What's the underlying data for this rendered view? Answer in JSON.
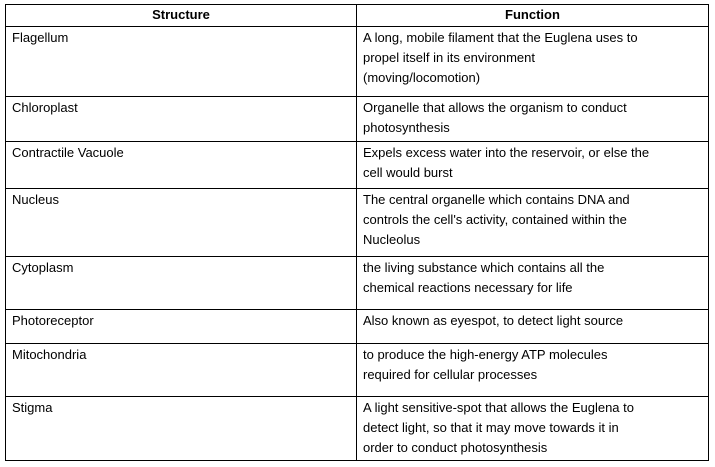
{
  "headers": {
    "structure": "Structure",
    "function": "Function"
  },
  "rows": [
    {
      "structure": "Flagellum",
      "function": [
        "A long, mobile filament that the Euglena uses to",
        "propel  itself in its environment",
        "(moving/locomotion)"
      ]
    },
    {
      "structure": "Chloroplast",
      "function": [
        "Organelle that allows the organism to conduct",
        "photosynthesis"
      ]
    },
    {
      "structure": "Contractile Vacuole",
      "function": [
        "Expels excess water into the reservoir, or else the",
        "cell would burst"
      ]
    },
    {
      "structure": "Nucleus",
      "function": [
        "The central organelle which contains DNA and",
        "controls the cell's activity, contained within the",
        "Nucleolus"
      ]
    },
    {
      "structure": "Cytoplasm",
      "function": [
        "the living substance which contains all the",
        "chemical reactions necessary for life"
      ]
    },
    {
      "structure": "Photoreceptor",
      "function": [
        "Also known as eyespot, to detect light source"
      ]
    },
    {
      "structure": "Mitochondria",
      "function": [
        "to produce the high-energy ATP molecules",
        "required for cellular processes"
      ]
    },
    {
      "structure": "Stigma",
      "function": [
        "A light sensitive-spot  that allows the Euglena to",
        "detect light, so that it may move towards  it in",
        "order to conduct  photosynthesis"
      ]
    }
  ]
}
